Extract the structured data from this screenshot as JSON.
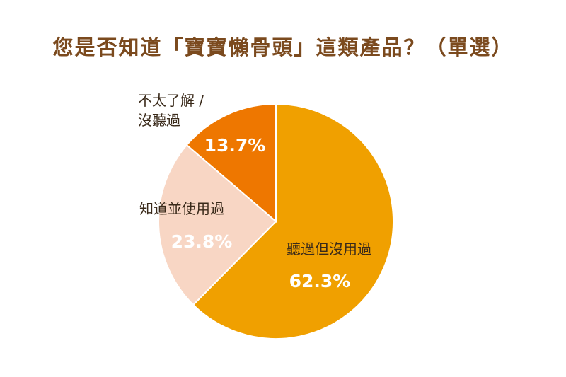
{
  "chart_data": {
    "type": "pie",
    "title": "您是否知道「寶寶懶骨頭」這類產品？（單選）",
    "slices": [
      {
        "name": "聽過但沒用過",
        "value": 62.3,
        "value_label": "62.3%",
        "color": "#f0a000",
        "name_color": "#3a2a1a",
        "value_color": "#ffffff"
      },
      {
        "name": "知道並使用過",
        "value": 23.8,
        "value_label": "23.8%",
        "color": "#f8d6c4",
        "name_color": "#3a2a1a",
        "value_color": "#ffffff"
      },
      {
        "name_lines": [
          "不太了解 /",
          "沒聽過"
        ],
        "value": 13.7,
        "value_label": "13.7%",
        "color": "#ee7700",
        "name_color": "#3a2a1a",
        "value_color": "#ffffff"
      }
    ],
    "start": "12 o'clock",
    "direction": "clockwise"
  }
}
